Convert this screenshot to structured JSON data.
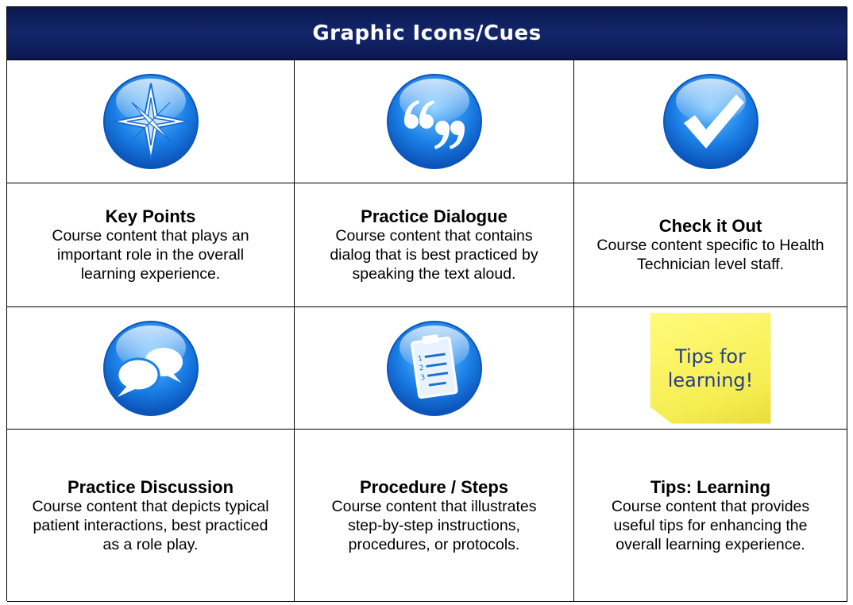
{
  "header": {
    "title": "Graphic Icons/Cues"
  },
  "items": [
    {
      "title": "Key Points",
      "description": "Course content that plays an important role in the overall learning experience."
    },
    {
      "title": "Practice Dialogue",
      "description": "Course content that contains dialog that is best practiced by speaking the text aloud."
    },
    {
      "title": "Check it Out",
      "description": "Course content specific to Health Technician level staff."
    },
    {
      "title": "Practice Discussion",
      "description": "Course content that depicts typical patient interactions, best practiced as a role play."
    },
    {
      "title": "Procedure / Steps",
      "description": "Course content that illustrates step-by-step instructions, procedures, or protocols."
    },
    {
      "title": "Tips: Learning",
      "description": "Course content that provides useful tips for enhancing the overall learning experience."
    }
  ],
  "sticky_note": {
    "text": "Tips for learning!"
  }
}
